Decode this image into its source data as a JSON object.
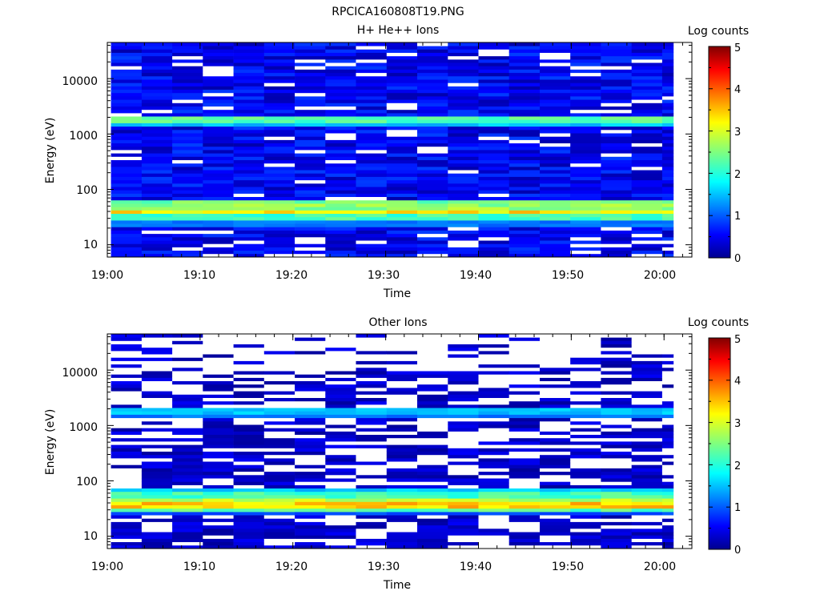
{
  "figure_title": "RPCICA160808T19.PNG",
  "colors": {
    "axis": "#000000",
    "background": "#ffffff",
    "colormap": "jet"
  },
  "chart_data": [
    {
      "type": "heatmap",
      "title": "H+ He++ Ions",
      "xlabel": "Time",
      "ylabel": "Energy (eV)",
      "x_tick_labels": [
        "19:00",
        "19:10",
        "19:20",
        "19:30",
        "19:40",
        "19:50",
        "20:00"
      ],
      "y_tick_labels": [
        "10",
        "100",
        "1000",
        "10000"
      ],
      "y_scale": "log",
      "ylim": [
        6,
        45000
      ],
      "xlim": [
        "19:00",
        "20:03"
      ],
      "grid": false,
      "colorbar": {
        "label": "Log counts",
        "ticks": [
          "0",
          "1",
          "2",
          "3",
          "4",
          "5"
        ],
        "range": [
          0,
          5
        ]
      },
      "bands": [
        {
          "energy_ev": 6000,
          "log_counts": 0.6
        },
        {
          "energy_ev": 1800,
          "log_counts": 2.3
        },
        {
          "energy_ev": 1600,
          "log_counts": 1.6
        },
        {
          "energy_ev": 60,
          "log_counts": 2.4
        },
        {
          "energy_ev": 48,
          "log_counts": 2.6
        },
        {
          "energy_ev": 40,
          "log_counts": 3.2
        },
        {
          "energy_ev": 33,
          "log_counts": 2.2
        },
        {
          "energy_ev": 25,
          "log_counts": 1.2
        }
      ]
    },
    {
      "type": "heatmap",
      "title": "Other Ions",
      "xlabel": "Time",
      "ylabel": "Energy (eV)",
      "x_tick_labels": [
        "19:00",
        "19:10",
        "19:20",
        "19:30",
        "19:40",
        "19:50",
        "20:00"
      ],
      "y_tick_labels": [
        "10",
        "100",
        "1000",
        "10000"
      ],
      "y_scale": "log",
      "ylim": [
        6,
        45000
      ],
      "xlim": [
        "19:00",
        "20:03"
      ],
      "grid": false,
      "colorbar": {
        "label": "Log counts",
        "ticks": [
          "0",
          "1",
          "2",
          "3",
          "4",
          "5"
        ],
        "range": [
          0,
          5
        ]
      },
      "bands": [
        {
          "energy_ev": 1900,
          "log_counts": 1.6
        },
        {
          "energy_ev": 1650,
          "log_counts": 1.2
        },
        {
          "energy_ev": 70,
          "log_counts": 1.6
        },
        {
          "energy_ev": 55,
          "log_counts": 2.2
        },
        {
          "energy_ev": 45,
          "log_counts": 2.8
        },
        {
          "energy_ev": 38,
          "log_counts": 3.3
        },
        {
          "energy_ev": 31,
          "log_counts": 2.3
        },
        {
          "energy_ev": 26,
          "log_counts": 1.0
        }
      ]
    }
  ]
}
